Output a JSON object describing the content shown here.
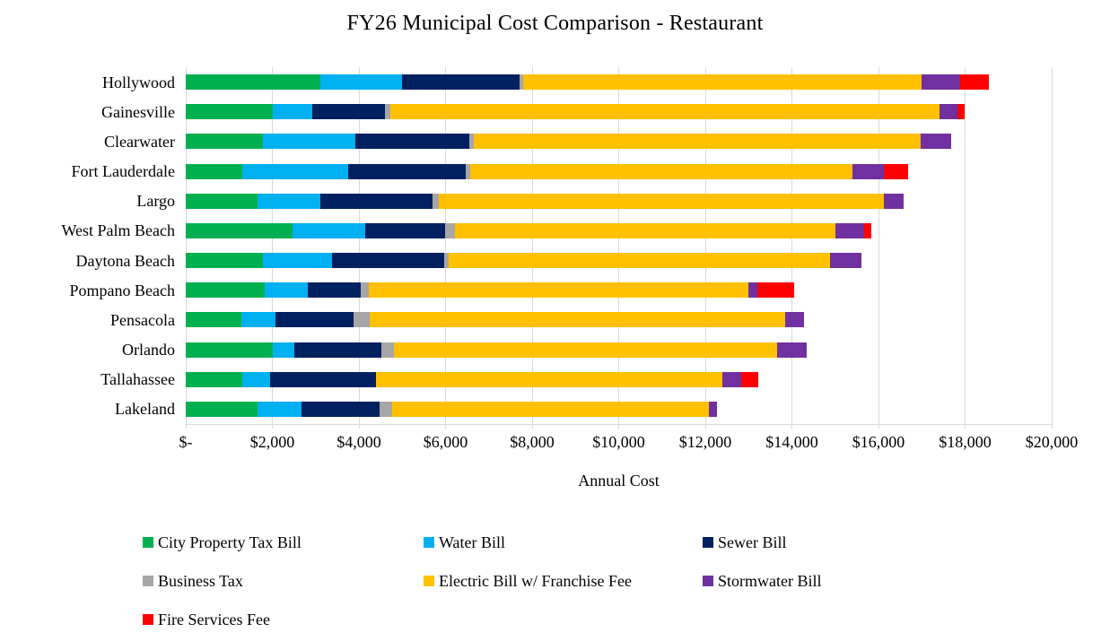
{
  "title": "FY26 Municipal Cost Comparison - Restaurant",
  "colors": {
    "background": "#FFFFFF",
    "gridline": "#D9D9D9",
    "text": "#000000"
  },
  "chart_data": {
    "type": "bar",
    "orientation": "horizontal",
    "stacked": true,
    "title": "FY26 Municipal Cost Comparison - Restaurant",
    "xlabel": "Annual Cost",
    "ylabel": "",
    "xlim": [
      0,
      20000
    ],
    "grid": true,
    "legend_position": "bottom",
    "x_tick_values": [
      0,
      2000,
      4000,
      6000,
      8000,
      10000,
      12000,
      14000,
      16000,
      18000,
      20000
    ],
    "x_tick_labels": [
      "$-",
      "$2,000",
      "$4,000",
      "$6,000",
      "$8,000",
      "$10,000",
      "$12,000",
      "$14,000",
      "$16,000",
      "$18,000",
      "$20,000"
    ],
    "categories": [
      "Hollywood",
      "Gainesville",
      "Clearwater",
      "Fort Lauderdale",
      "Largo",
      "West Palm Beach",
      "Daytona Beach",
      "Pompano Beach",
      "Pensacola",
      "Orlando",
      "Tallahassee",
      "Lakeland"
    ],
    "series": [
      {
        "name": "City Property Tax Bill",
        "color": "#00B050",
        "values": [
          3100,
          2000,
          1775,
          1300,
          1650,
          2475,
          1775,
          1825,
          1275,
          2000,
          1300,
          1650
        ]
      },
      {
        "name": "Water Bill",
        "color": "#00B0F0",
        "values": [
          1900,
          925,
          2150,
          2450,
          1450,
          1675,
          1600,
          1000,
          800,
          500,
          650,
          1025
        ]
      },
      {
        "name": "Sewer Bill",
        "color": "#002060",
        "values": [
          2700,
          1675,
          2625,
          2725,
          2600,
          1850,
          2600,
          1225,
          1800,
          2025,
          2450,
          1800
        ]
      },
      {
        "name": "Business Tax",
        "color": "#A6A6A6",
        "values": [
          90,
          125,
          100,
          100,
          150,
          225,
          100,
          175,
          375,
          275,
          0,
          300
        ]
      },
      {
        "name": "Electric Bill w/ Franchise Fee",
        "color": "#FFC000",
        "values": [
          9200,
          12675,
          10325,
          8825,
          10275,
          8775,
          8800,
          8775,
          9600,
          8850,
          8000,
          7300
        ]
      },
      {
        "name": "Stormwater Bill",
        "color": "#7030A0",
        "values": [
          900,
          425,
          700,
          725,
          450,
          675,
          725,
          200,
          425,
          700,
          425,
          200
        ]
      },
      {
        "name": "Fire Services Fee",
        "color": "#FF0000",
        "values": [
          650,
          175,
          0,
          550,
          0,
          150,
          0,
          850,
          0,
          0,
          400,
          0
        ]
      }
    ]
  }
}
